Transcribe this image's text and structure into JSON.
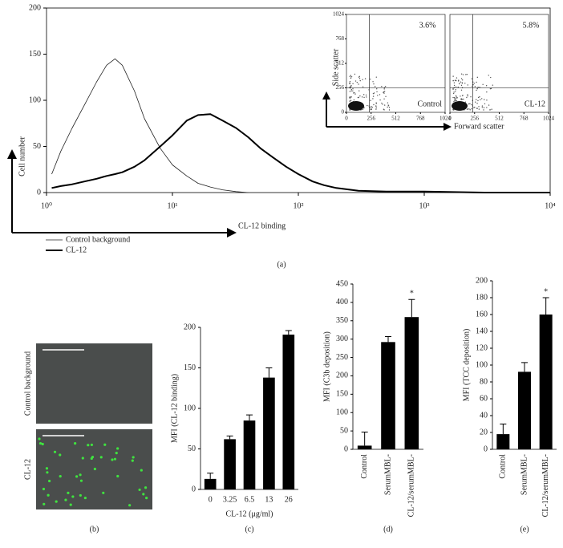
{
  "chart_data": [
    {
      "type": "line",
      "xscale": "log",
      "panel_label": "(a)",
      "xlabel": "CL-12 binding",
      "ylabel": "Cell number",
      "x": [
        1.1,
        1.3,
        1.6,
        2,
        2.5,
        3,
        3.5,
        4,
        5,
        6,
        8,
        10,
        13,
        16,
        20,
        25,
        32,
        40,
        50,
        63,
        80,
        100,
        130,
        160,
        200,
        300,
        500,
        1000,
        3000,
        10000
      ],
      "series": [
        {
          "name": "Control background",
          "color": "#222222",
          "width": 0.8,
          "values": [
            20,
            45,
            70,
            95,
            120,
            138,
            145,
            138,
            110,
            80,
            48,
            30,
            18,
            10,
            6,
            3,
            1,
            0,
            null,
            null,
            null,
            null,
            null,
            null,
            null,
            null,
            null,
            null,
            null,
            null
          ]
        },
        {
          "name": "CL-12",
          "color": "#000000",
          "width": 2,
          "values": [
            5,
            7,
            9,
            12,
            15,
            18,
            20,
            22,
            28,
            35,
            50,
            62,
            78,
            84,
            85,
            78,
            70,
            60,
            48,
            38,
            28,
            20,
            12,
            8,
            5,
            2,
            1,
            1,
            0,
            0
          ]
        }
      ],
      "xlim": [
        1,
        10000
      ],
      "xticks": [
        {
          "value": 1,
          "label": "10⁰"
        },
        {
          "value": 10,
          "label": "10¹"
        },
        {
          "value": 100,
          "label": "10²"
        },
        {
          "value": 1000,
          "label": "10³"
        },
        {
          "value": 10000,
          "label": "10⁴"
        }
      ],
      "ylim": [
        0,
        200
      ],
      "yticks": [
        0,
        50,
        100,
        150,
        200
      ]
    },
    {
      "type": "flow-inset",
      "xlabel": "Forward scatter",
      "ylabel": "Side scatter",
      "plots": [
        {
          "name": "Control",
          "annotation": {
            "value": 3.6,
            "label": "3.6%"
          }
        },
        {
          "name": "CL-12",
          "annotation": {
            "value": 5.8,
            "label": "5.8%"
          }
        }
      ],
      "xlim": [
        0,
        1024
      ],
      "xticks": [
        0,
        256,
        512,
        768,
        1024
      ],
      "ylim": [
        0,
        1024
      ],
      "yticks": [
        0,
        256,
        512,
        768,
        1024
      ]
    },
    {
      "type": "image",
      "panel_label": "(b)",
      "images": [
        "Control background",
        "CL-12"
      ]
    },
    {
      "type": "bar",
      "panel_label": "(c)",
      "xlabel": "CL-12 (μg/ml)",
      "ylabel": "MFI (CL-12 binding)",
      "categories": [
        "0",
        "3.25",
        "6.5",
        "13",
        "26"
      ],
      "values": [
        13,
        62,
        85,
        138,
        191
      ],
      "errors": [
        7,
        4,
        7,
        12,
        5
      ],
      "color": "#000000",
      "ylim": [
        0,
        200
      ],
      "yticks": [
        0,
        50,
        100,
        150,
        200
      ]
    },
    {
      "type": "bar",
      "panel_label": "(d)",
      "ylabel": "MFI (C3b deposition)",
      "categories": [
        "Control",
        "SerumMBL-",
        "CL-12/serumMBL-"
      ],
      "values": [
        10,
        292,
        360
      ],
      "errors": [
        37,
        15,
        48
      ],
      "significance": [
        null,
        null,
        "*"
      ],
      "color": "#000000",
      "ylim": [
        0,
        450
      ],
      "yticks": [
        0,
        50,
        100,
        150,
        200,
        250,
        300,
        350,
        400,
        450
      ]
    },
    {
      "type": "bar",
      "panel_label": "(e)",
      "ylabel": "MFI (TCC deposition)",
      "categories": [
        "Control",
        "SerumMBL-",
        "CL-12/serumMBL-"
      ],
      "values": [
        18,
        92,
        160
      ],
      "errors": [
        12,
        11,
        20
      ],
      "significance": [
        null,
        null,
        "*"
      ],
      "color": "#000000",
      "ylim": [
        0,
        200
      ],
      "yticks": [
        0,
        20,
        40,
        60,
        80,
        100,
        120,
        140,
        160,
        180,
        200
      ]
    }
  ]
}
